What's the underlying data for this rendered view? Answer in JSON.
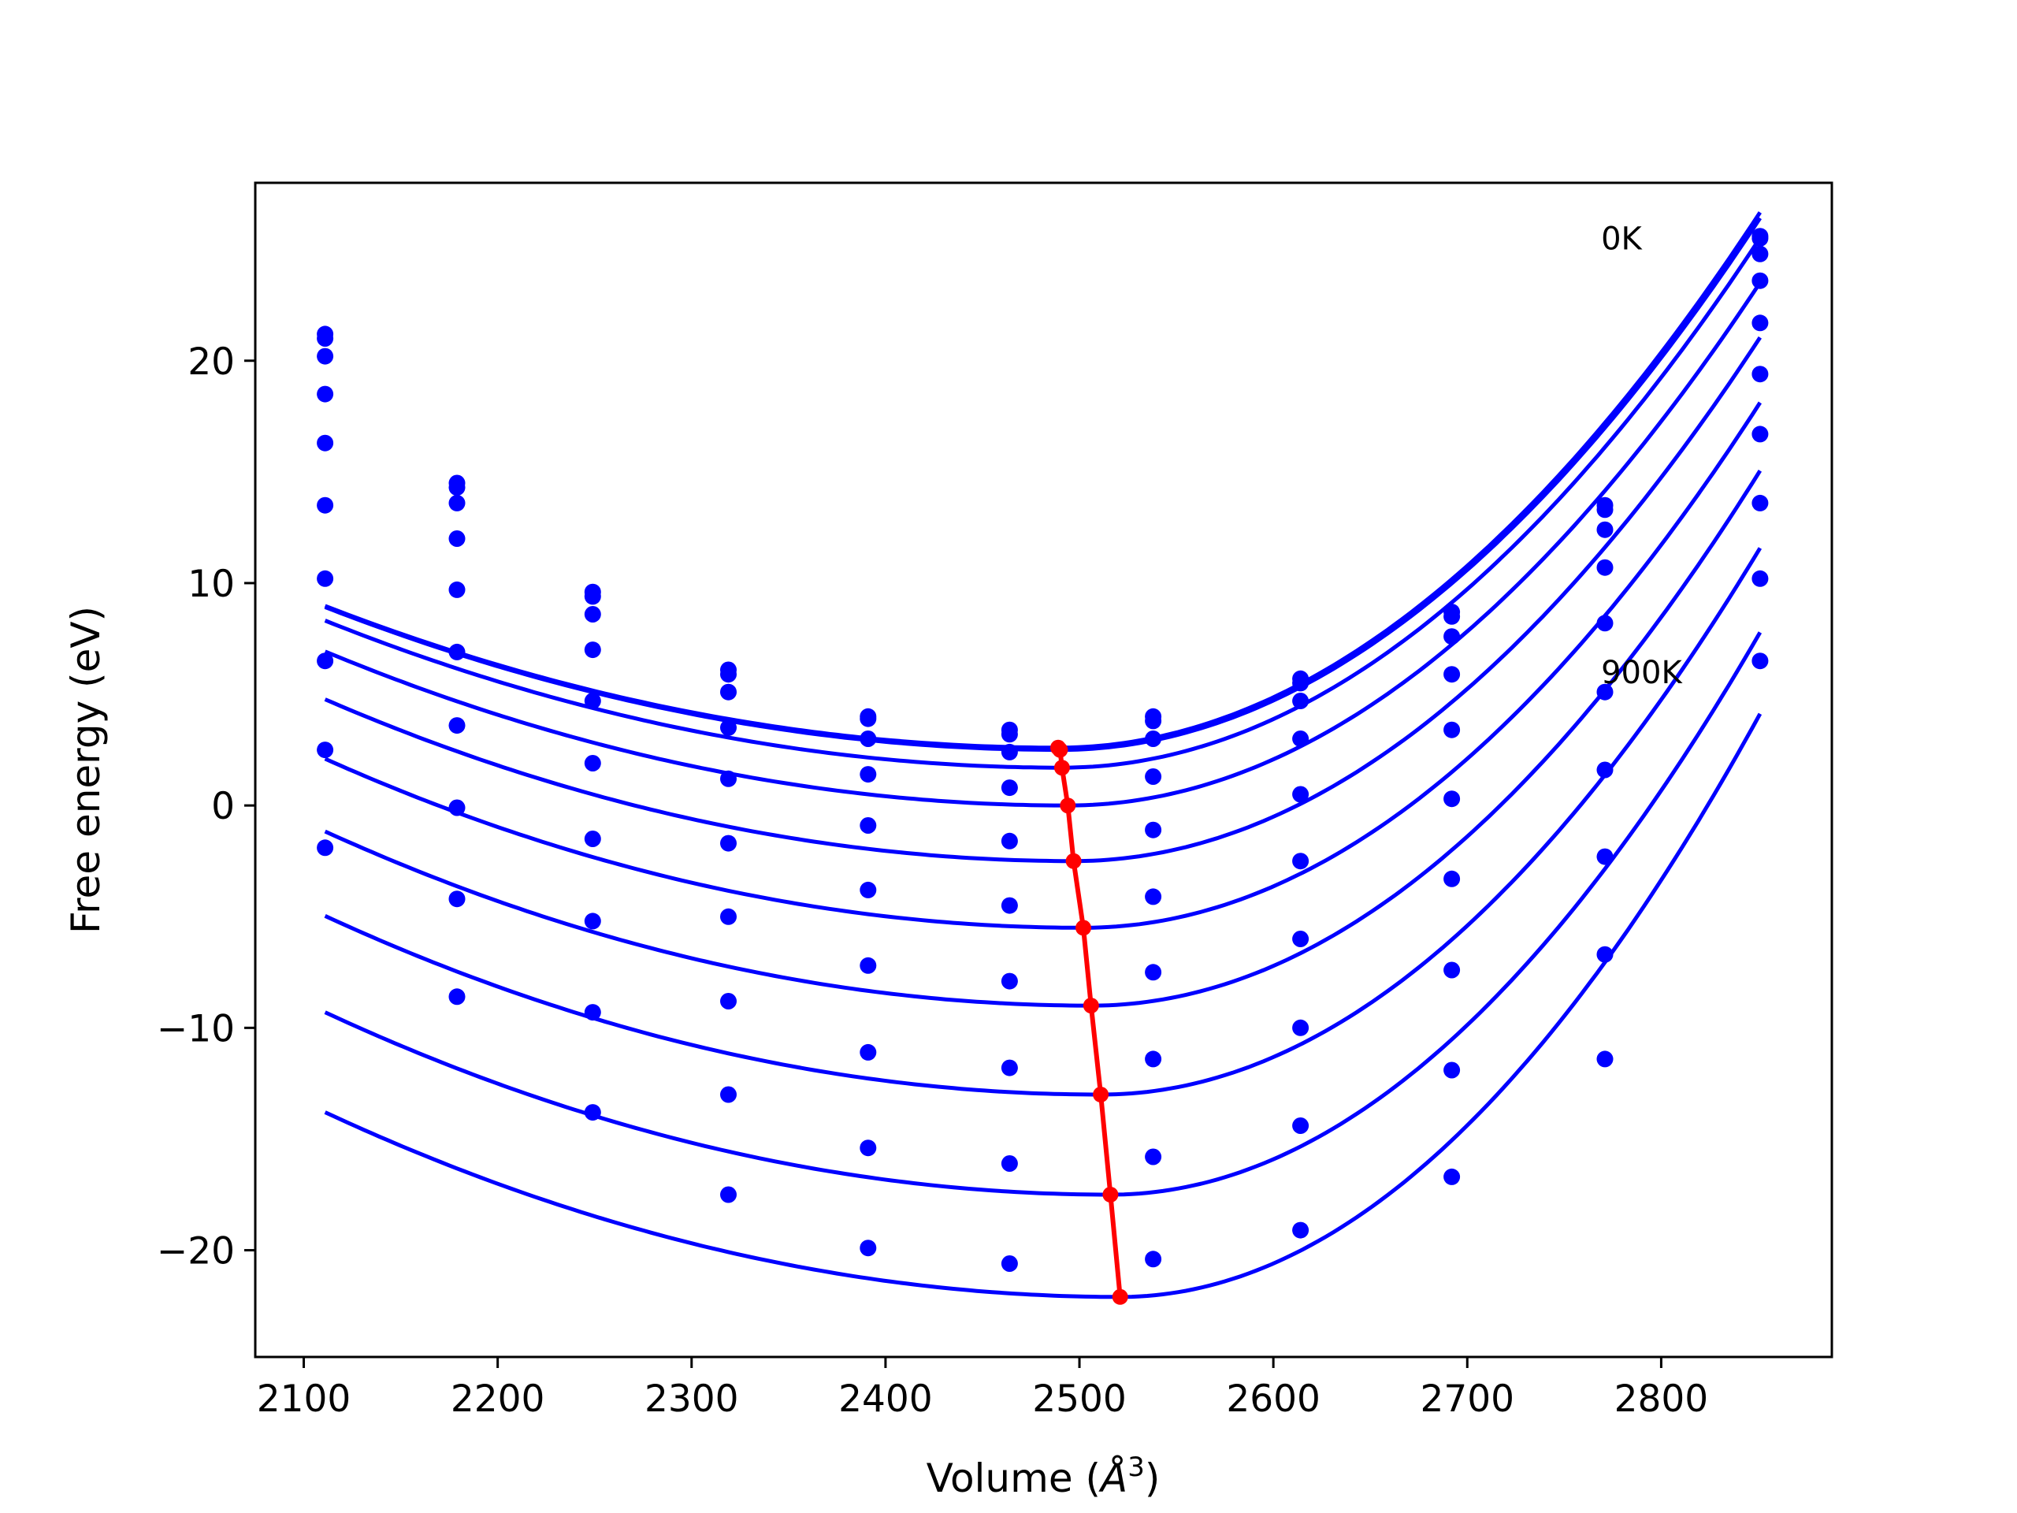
{
  "chart_data": {
    "type": "scatter",
    "xlabel": "Volume (",
    "xlabel_symbol": "Å",
    "xlabel_exp": "3",
    "xlabel_close": ")",
    "ylabel": "Free energy (eV)",
    "xlim": [
      2075,
      2888
    ],
    "ylim": [
      -24.8,
      28.0
    ],
    "xticks": [
      2100,
      2200,
      2300,
      2400,
      2500,
      2600,
      2700,
      2800
    ],
    "xtick_labels": [
      "2100",
      "2200",
      "2300",
      "2400",
      "2500",
      "2600",
      "2700",
      "2800"
    ],
    "yticks": [
      -20,
      -10,
      0,
      10,
      20
    ],
    "ytick_labels": [
      "−20",
      "−10",
      "0",
      "10",
      "20"
    ],
    "grid": false,
    "colors": {
      "curves": "#0000ff",
      "points": "#0000ff",
      "minima": "#ff0000",
      "frame": "#000000"
    },
    "annotations": [
      {
        "text": "0K",
        "x": 2769,
        "y": 25.5
      },
      {
        "text": "900K",
        "x": 2769,
        "y": 6.0
      }
    ],
    "volumes": [
      2111,
      2179,
      2249,
      2319,
      2391,
      2464,
      2538,
      2614,
      2692,
      2771,
      2851
    ],
    "series": [
      {
        "fit_min_x": 2489,
        "fit_min_y": 2.6,
        "points": [
          21.2,
          14.5,
          9.6,
          6.1,
          4.0,
          3.4,
          4.0,
          5.7,
          8.7,
          13.5,
          25.6
        ]
      },
      {
        "fit_min_x": 2490,
        "fit_min_y": 2.5,
        "points": [
          21.0,
          14.3,
          9.4,
          5.9,
          3.9,
          3.2,
          3.8,
          5.5,
          8.5,
          13.3,
          25.5
        ]
      },
      {
        "fit_min_x": 2491,
        "fit_min_y": 1.7,
        "points": [
          20.2,
          13.6,
          8.6,
          5.1,
          3.0,
          2.4,
          3.0,
          4.7,
          7.6,
          12.4,
          24.8
        ]
      },
      {
        "fit_min_x": 2494,
        "fit_min_y": 0.0,
        "points": [
          18.5,
          12.0,
          7.0,
          3.5,
          1.4,
          0.8,
          1.3,
          3.0,
          5.9,
          10.7,
          23.6
        ]
      },
      {
        "fit_min_x": 2497,
        "fit_min_y": -2.5,
        "points": [
          16.3,
          9.7,
          4.7,
          1.2,
          -0.9,
          -1.6,
          -1.1,
          0.5,
          3.4,
          8.2,
          21.7
        ]
      },
      {
        "fit_min_x": 2502,
        "fit_min_y": -5.5,
        "points": [
          13.5,
          6.9,
          1.9,
          -1.7,
          -3.8,
          -4.5,
          -4.1,
          -2.5,
          0.3,
          5.1,
          19.4
        ]
      },
      {
        "fit_min_x": 2506,
        "fit_min_y": -9.0,
        "points": [
          10.2,
          3.6,
          -1.5,
          -5.0,
          -7.2,
          -7.9,
          -7.5,
          -6.0,
          -3.3,
          1.6,
          16.7
        ]
      },
      {
        "fit_min_x": 2511,
        "fit_min_y": -13.0,
        "points": [
          6.5,
          -0.1,
          -5.2,
          -8.8,
          -11.1,
          -11.8,
          -11.4,
          -10.0,
          -7.4,
          -2.3,
          13.6
        ]
      },
      {
        "fit_min_x": 2516,
        "fit_min_y": -17.5,
        "points": [
          2.5,
          -4.2,
          -9.3,
          -13.0,
          -15.4,
          -16.1,
          -15.8,
          -14.4,
          -11.9,
          -6.7,
          10.2
        ]
      },
      {
        "fit_min_x": 2521,
        "fit_min_y": -22.1,
        "points": [
          -1.9,
          -8.6,
          -13.8,
          -17.5,
          -19.9,
          -20.6,
          -20.4,
          -19.1,
          -16.7,
          -11.4,
          6.5
        ]
      }
    ],
    "curve_fit": {
      "x_start": 2111,
      "x_end": 2852,
      "a2_left": [
        4.46e-05,
        4.47e-05,
        4.58e-05,
        4.72e-05,
        4.88e-05,
        4.97e-05,
        5.02e-05,
        5.02e-05,
        5e-05,
        4.94e-05
      ],
      "a2_right": [
        0.0001837,
        0.0001835,
        0.0001838,
        0.0001845,
        0.0001879,
        0.0001939,
        0.0002021,
        0.0002126,
        0.0002253,
        0.0002408
      ]
    }
  }
}
